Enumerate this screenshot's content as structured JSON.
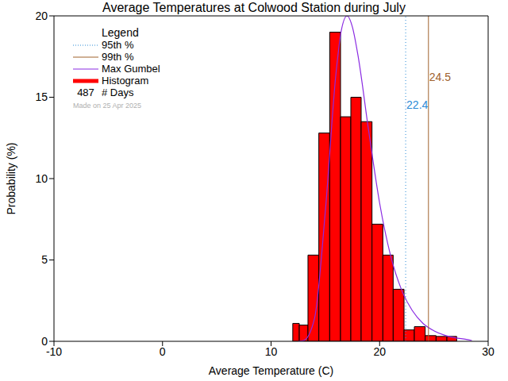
{
  "chart_data": {
    "type": "histogram",
    "title": "Average Temperatures at Colwood Station during July",
    "x_label": "Average Temperature (C)",
    "y_label": "Probability (%)",
    "bins": [
      12.0,
      12.6,
      13.4,
      14.4,
      15.4,
      16.4,
      17.35,
      18.3,
      19.3,
      20.3,
      21.25,
      22.25,
      23.2,
      24.2,
      25.2,
      26.2,
      27.1
    ],
    "values": [
      1.1,
      1.0,
      5.3,
      12.8,
      19.0,
      13.8,
      15.0,
      13.5,
      7.2,
      5.3,
      3.2,
      0.7,
      0.9,
      0.35,
      0.3,
      0.3
    ],
    "histogram_name": "Histogram",
    "color": "#ff0000",
    "curve": {
      "name": "Max Gumbel",
      "color": "#8a2be2",
      "x": [
        12.5,
        13,
        14,
        15,
        16,
        16.5,
        17,
        17.5,
        18,
        19,
        20,
        21,
        22,
        23,
        24,
        25,
        26,
        27,
        28,
        28.5
      ],
      "values": [
        0,
        0.05,
        1.4,
        8.0,
        16.6,
        19.2,
        20.0,
        19.3,
        17.6,
        12.9,
        8.5,
        5.3,
        3.2,
        1.9,
        1.1,
        0.65,
        0.37,
        0.21,
        0.12,
        0.05
      ]
    },
    "percentiles": [
      {
        "name": "95th %",
        "value": 22.4,
        "color": "#2a8ad6",
        "line_style": "dotted"
      },
      {
        "name": "99th %",
        "value": 24.5,
        "color": "#a0622d",
        "line_style": "solid"
      }
    ],
    "legend_title": "Legend",
    "days": {
      "value": 487,
      "label": "# Days"
    },
    "annotation": "Made on 25 Apr 2025",
    "xlim": [
      -10,
      30
    ],
    "xticks": [
      -10,
      0,
      10,
      20,
      30
    ],
    "ylim": [
      0,
      20
    ],
    "yticks": [
      0,
      5,
      10,
      15,
      20
    ],
    "legend": "top left"
  }
}
